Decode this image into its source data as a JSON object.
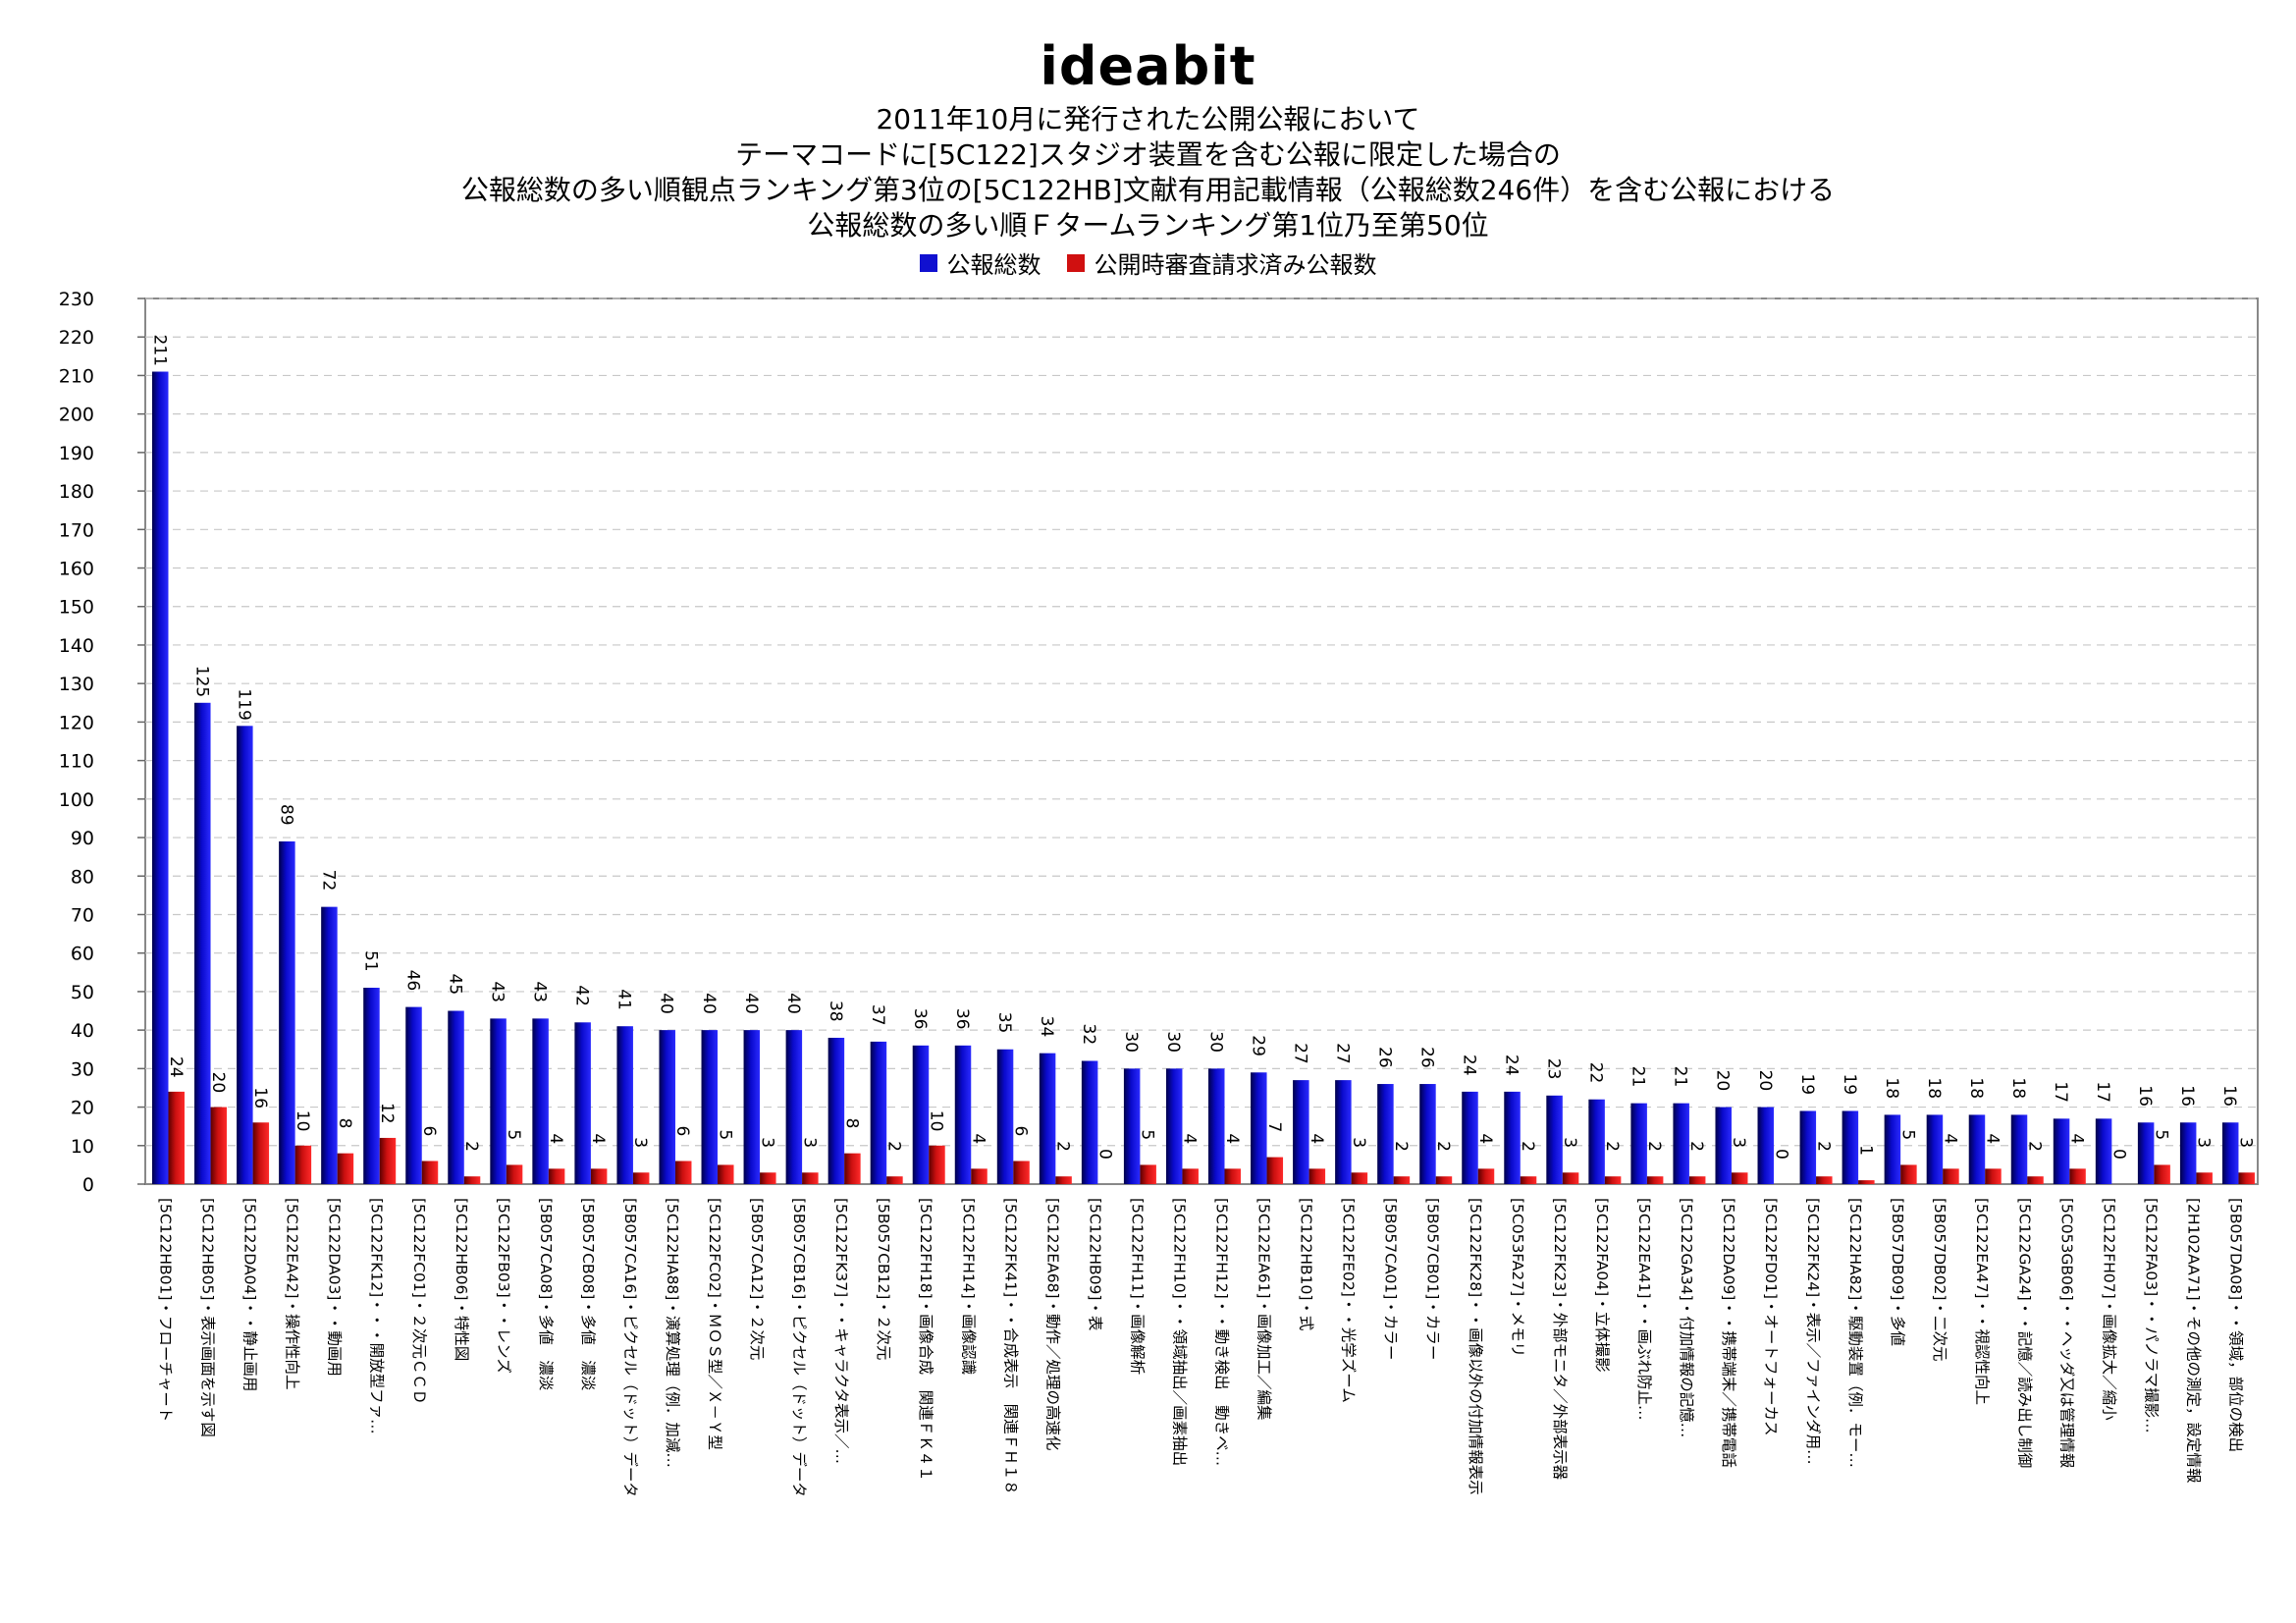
{
  "logo": "ideabit",
  "chart_data": {
    "type": "bar",
    "title_lines": [
      "2011年10月に発行された公開公報において",
      "テーマコードに[5C122]スタジオ装置を含む公報に限定した場合の",
      "公報総数の多い順観点ランキング第3位の[5C122HB]文献有用記載情報（公報総数246件）を含む公報における",
      "公報総数の多い順Ｆタームランキング第1位乃至第50位"
    ],
    "xlabel": "",
    "ylabel": "",
    "ylim": [
      0,
      230
    ],
    "yticks": [
      0,
      10,
      20,
      30,
      40,
      50,
      60,
      70,
      80,
      90,
      100,
      110,
      120,
      130,
      140,
      150,
      160,
      170,
      180,
      190,
      200,
      210,
      220,
      230
    ],
    "grid": true,
    "legend_position": "top-center",
    "colors": {
      "series1": "#1010d0",
      "series2": "#d01010"
    },
    "categories": [
      "[5C122HB01]・フローチャート",
      "[5C122HB05]・表示画面を示す図",
      "[5C122DA04]・・静止画用",
      "[5C122EA42]・操作性向上",
      "[5C122DA03]・・動画用",
      "[5C122FK12]・・・開放型ファ…",
      "[5C122FC01]・２次元ＣＣＤ",
      "[5C122HB06]・特性図",
      "[5C122FB03]・・レンズ",
      "[5B057CA08]・多値　濃淡",
      "[5B057CB08]・多値　濃淡",
      "[5B057CA16]・ピクセル（ドット）データ",
      "[5C122HA88]・演算処理（例．加減…",
      "[5C122FC02]・ＭＯＳ型／Ｘ－Ｙ型",
      "[5B057CA12]・２次元",
      "[5B057CB16]・ピクセル（ドット）データ",
      "[5C122FK37]・・キャラクタ表示／…",
      "[5B057CB12]・２次元",
      "[5C122FH18]・画像合成　関連ＦＫ４１",
      "[5C122FH14]・画像認識",
      "[5C122FK41]・・合成表示　関連ＦＨ１８",
      "[5C122EA68]・動作／処理の高速化",
      "[5C122HB09]・表",
      "[5C122FH11]・画像解析",
      "[5C122FH10]・・領域抽出／画素抽出",
      "[5C122FH12]・・動き検出　動きベ…",
      "[5C122EA61]・画像加工／編集",
      "[5C122HB10]・式",
      "[5C122FE02]・・光学ズーム",
      "[5B057CA01]・カラー",
      "[5B057CB01]・カラー",
      "[5C122FK28]・・画像以外の付加情報表示",
      "[5C053FA27]・メモリ",
      "[5C122FK23]・外部モニタ／外部表示器",
      "[5C122FA04]・立体撮影",
      "[5C122EA41]・・画ぶれ防止…",
      "[5C122GA34]・付加情報の記憶…",
      "[5C122DA09]・・携帯端末／携帯電話",
      "[5C122FD01]・オートフォーカス",
      "[5C122FK24]・表示／ファインダ用…",
      "[5C122HA82]・駆動装置（例．モー…",
      "[5B057DB09]・多値",
      "[5B057DB02]・二次元",
      "[5C122EA47]・・視認性向上",
      "[5C122GA24]・・記憶／読み出し制御",
      "[5C053GB06]・・ヘッダ又は管理情報",
      "[5C122FH07]・画像拡大／縮小",
      "[5C122FA03]・・パノラマ撮影…",
      "[2H102AA71]・その他の測定，設定情報",
      "[5B057DA08]・・領域，部位の検出"
    ],
    "series": [
      {
        "name": "公報総数",
        "values": [
          211,
          125,
          119,
          89,
          72,
          51,
          46,
          45,
          43,
          43,
          42,
          41,
          40,
          40,
          40,
          40,
          38,
          37,
          36,
          36,
          35,
          34,
          32,
          30,
          30,
          30,
          29,
          27,
          27,
          26,
          26,
          24,
          24,
          23,
          22,
          21,
          21,
          20,
          20,
          19,
          19,
          18,
          18,
          18,
          18,
          17,
          17,
          16,
          16,
          16
        ]
      },
      {
        "name": "公開時審査請求済み公報数",
        "values": [
          24,
          20,
          16,
          10,
          8,
          12,
          6,
          2,
          5,
          4,
          4,
          3,
          6,
          5,
          3,
          3,
          8,
          2,
          10,
          4,
          6,
          2,
          0,
          5,
          4,
          4,
          7,
          4,
          3,
          2,
          2,
          4,
          2,
          3,
          2,
          2,
          2,
          3,
          0,
          2,
          1,
          5,
          4,
          4,
          2,
          4,
          0,
          5,
          3,
          3
        ]
      }
    ]
  }
}
